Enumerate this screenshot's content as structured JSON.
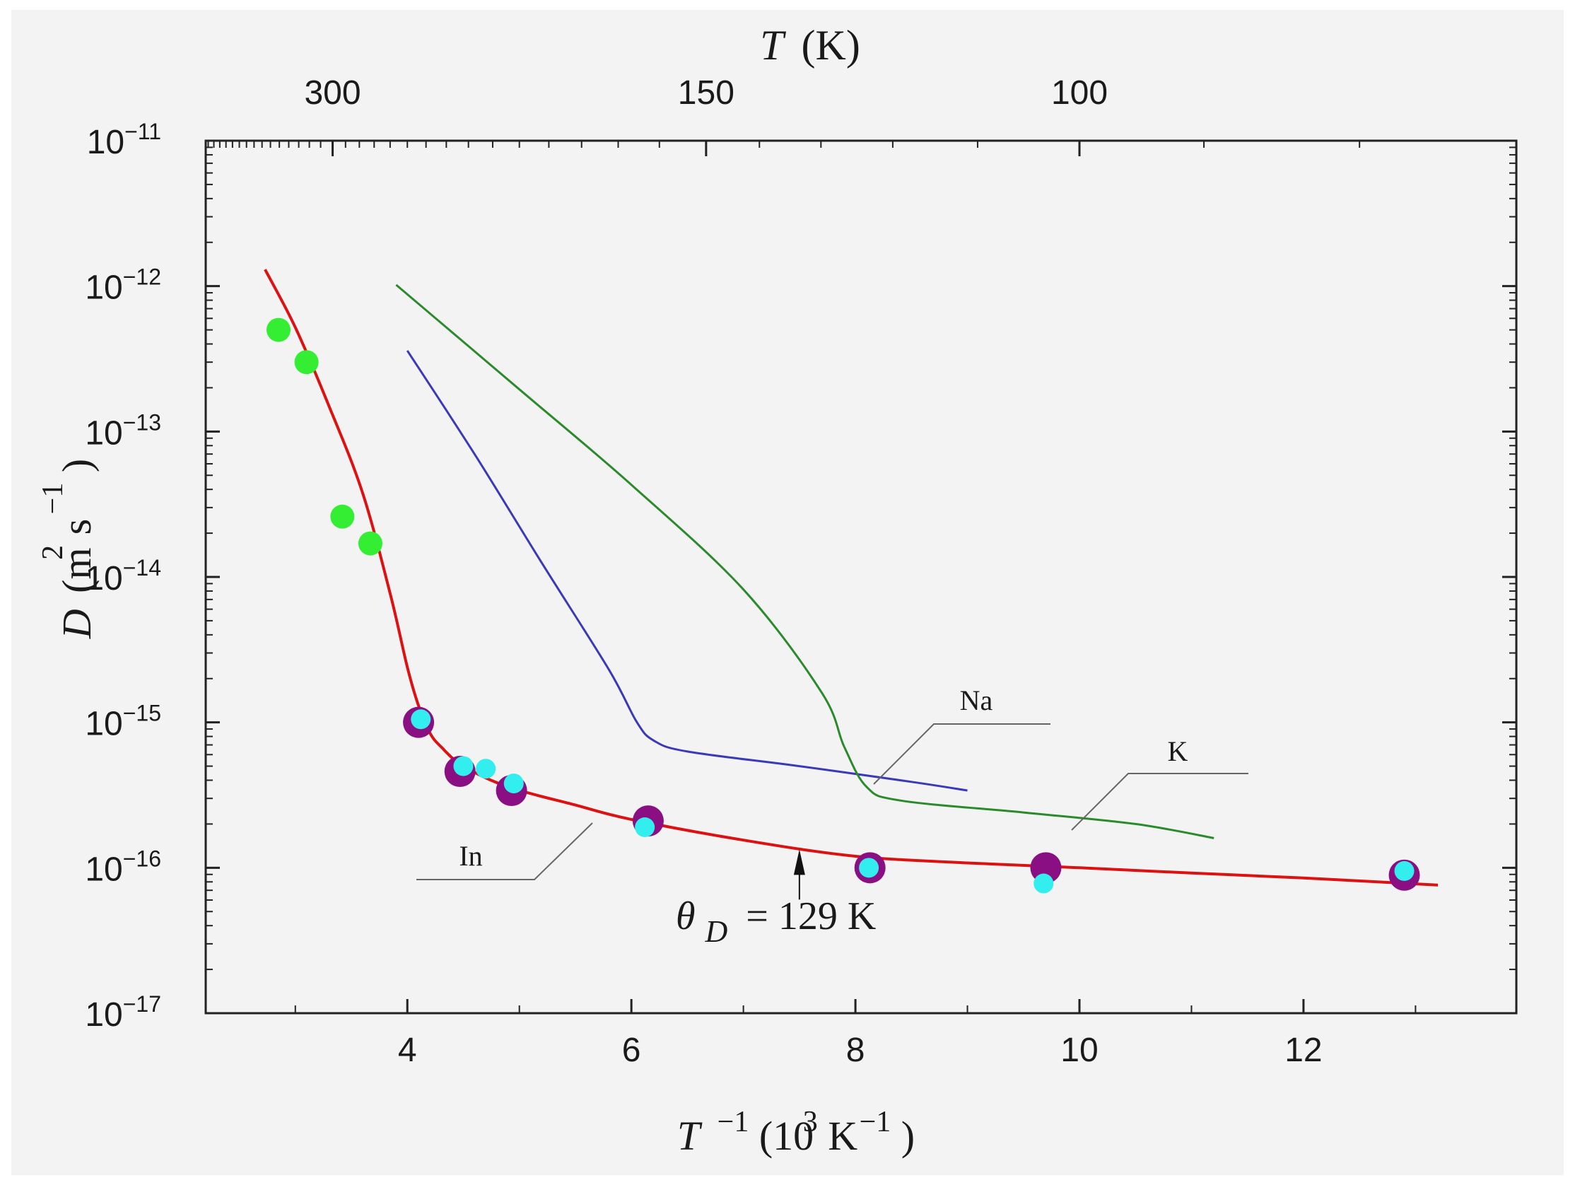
{
  "chart_data": {
    "type": "line",
    "title": "",
    "xlabel": {
      "var": "T",
      "sup1": "−1",
      "pre": "(10",
      "sup2": "3",
      "mid": "K",
      "sup3": "−1",
      "post": ")"
    },
    "ylabel": {
      "var": "D",
      "pre": "(m",
      "sup1": "2",
      "mid": "s",
      "sup2": "−1",
      "post": ")"
    },
    "top_xlabel": {
      "var": "T",
      "unit": "(K)"
    },
    "xlim": [
      2.2,
      13.9
    ],
    "ylim_log10": [
      -17,
      -11
    ],
    "x_ticks": [
      {
        "value": 4,
        "label": "4"
      },
      {
        "value": 6,
        "label": "6"
      },
      {
        "value": 8,
        "label": "8"
      },
      {
        "value": 10,
        "label": "10"
      },
      {
        "value": 12,
        "label": "12"
      }
    ],
    "y_ticks": [
      {
        "exp": -11,
        "base": "10",
        "label": "−11"
      },
      {
        "exp": -12,
        "base": "10",
        "label": "−12"
      },
      {
        "exp": -13,
        "base": "10",
        "label": "−13"
      },
      {
        "exp": -14,
        "base": "10",
        "label": "−14"
      },
      {
        "exp": -15,
        "base": "10",
        "label": "−15"
      },
      {
        "exp": -16,
        "base": "10",
        "label": "−16"
      },
      {
        "exp": -17,
        "base": "10",
        "label": "−17"
      }
    ],
    "top_ticks": [
      {
        "temp_K": 300,
        "x": 3.333,
        "label": "300"
      },
      {
        "temp_K": 150,
        "x": 6.667,
        "label": "150"
      },
      {
        "temp_K": 100,
        "x": 10.0,
        "label": "100"
      }
    ],
    "series": [
      {
        "name": "In",
        "kind": "line",
        "color": "#dd1111",
        "points": [
          [
            2.73,
            1.3e-12
          ],
          [
            3.0,
            5.2e-13
          ],
          [
            3.3,
            1.5e-13
          ],
          [
            3.6,
            3.8e-14
          ],
          [
            3.85,
            7.5e-15
          ],
          [
            4.0,
            2.4e-15
          ],
          [
            4.1,
            1.3e-15
          ],
          [
            4.2,
            8.5e-16
          ],
          [
            4.3,
            6.8e-16
          ],
          [
            4.5,
            5e-16
          ],
          [
            4.9,
            3.6e-16
          ],
          [
            5.5,
            2.7e-16
          ],
          [
            6.0,
            2.15e-16
          ],
          [
            7.0,
            1.55e-16
          ],
          [
            8.0,
            1.2e-16
          ],
          [
            9.0,
            1.08e-16
          ],
          [
            10.0,
            1e-16
          ],
          [
            11.0,
            9.2e-17
          ],
          [
            12.0,
            8.5e-17
          ],
          [
            13.2,
            7.6e-17
          ]
        ]
      },
      {
        "name": "Na",
        "kind": "line",
        "color": "#3a3ab8",
        "points": [
          [
            4.0,
            3.6e-13
          ],
          [
            4.6,
            7e-14
          ],
          [
            5.2,
            1.25e-14
          ],
          [
            5.8,
            2.3e-15
          ],
          [
            6.05,
            1e-15
          ],
          [
            6.2,
            7.5e-16
          ],
          [
            6.5,
            6.3e-16
          ],
          [
            7.5,
            5e-16
          ],
          [
            8.5,
            3.9e-16
          ],
          [
            9.0,
            3.4e-16
          ]
        ]
      },
      {
        "name": "K",
        "kind": "line",
        "color": "#2b8a2b",
        "points": [
          [
            3.9,
            1.02e-12
          ],
          [
            5.0,
            1.95e-13
          ],
          [
            6.0,
            4.3e-14
          ],
          [
            7.0,
            8.2e-15
          ],
          [
            7.7,
            1.6e-15
          ],
          [
            7.9,
            6.8e-16
          ],
          [
            8.1,
            3.6e-16
          ],
          [
            8.4,
            2.9e-16
          ],
          [
            9.5,
            2.4e-16
          ],
          [
            10.5,
            2e-16
          ],
          [
            11.2,
            1.6e-16
          ]
        ]
      },
      {
        "name": "green points",
        "kind": "scatter",
        "color": "#33ee33",
        "points": [
          [
            2.85,
            5e-13
          ],
          [
            3.1,
            3e-13
          ],
          [
            3.42,
            2.6e-14
          ],
          [
            3.67,
            1.7e-14
          ]
        ]
      },
      {
        "name": "purple points",
        "kind": "scatter",
        "color": "#8a0f82",
        "points": [
          [
            4.1,
            1e-15
          ],
          [
            4.47,
            4.6e-16
          ],
          [
            4.93,
            3.4e-16
          ],
          [
            6.15,
            2.1e-16
          ],
          [
            8.13,
            1e-16
          ],
          [
            9.7,
            1e-16
          ],
          [
            12.9,
            8.9e-17
          ]
        ]
      },
      {
        "name": "cyan points",
        "kind": "scatter",
        "color": "#33eeee",
        "points": [
          [
            4.12,
            1.05e-15
          ],
          [
            4.5,
            5e-16
          ],
          [
            4.7,
            4.8e-16
          ],
          [
            4.95,
            3.8e-16
          ],
          [
            6.12,
            1.9e-16
          ],
          [
            8.12,
            1e-16
          ],
          [
            9.68,
            7.8e-17
          ],
          [
            12.9,
            9.5e-17
          ]
        ]
      }
    ],
    "legend": [
      {
        "label": "Na",
        "series": "Na"
      },
      {
        "label": "K",
        "series": "K"
      },
      {
        "label": "In",
        "series": "In"
      }
    ],
    "annotation": {
      "sym": "θ",
      "sub": "D",
      "text": "= 129 K",
      "x": 7.5,
      "y": 1e-16
    }
  }
}
